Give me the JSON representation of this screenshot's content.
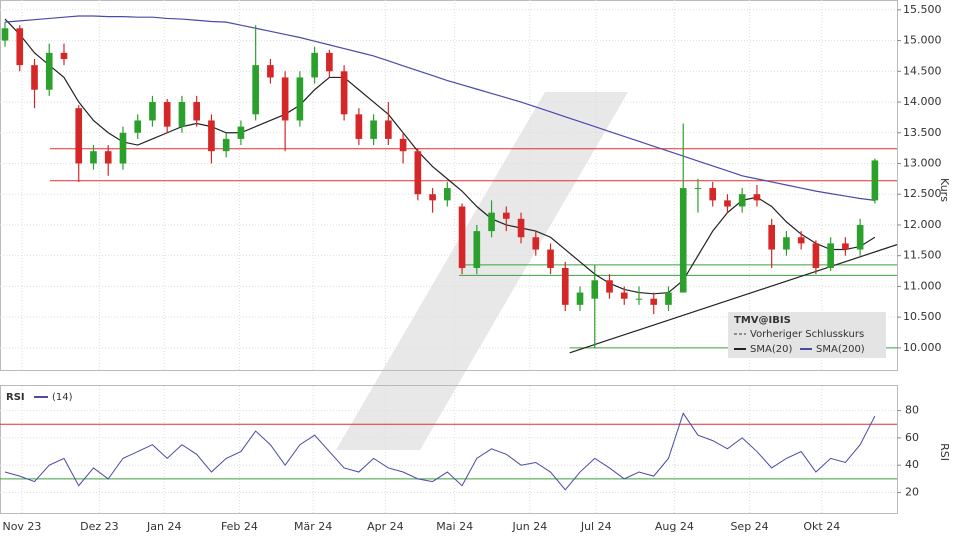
{
  "chart_data": {
    "type": "candlestick",
    "instrument": "TMV@IBIS",
    "legend": [
      "Vorheriger Schlusskurs",
      "SMA(20)",
      "SMA(200)"
    ],
    "ylabel": "Kurs",
    "up_color": "#2ca02c",
    "down_color": "#d62728",
    "xlim": [
      -0.34,
      60.5
    ],
    "xticks": [
      {
        "value": 1.15,
        "label": "Nov 23"
      },
      {
        "value": 6.4,
        "label": "Dez 23"
      },
      {
        "value": 10.8,
        "label": "Jan 24"
      },
      {
        "value": 15.9,
        "label": "Feb 24"
      },
      {
        "value": 20.9,
        "label": "Mär 24"
      },
      {
        "value": 25.8,
        "label": "Apr 24"
      },
      {
        "value": 30.5,
        "label": "Mai 24"
      },
      {
        "value": 35.6,
        "label": "Jun 24"
      },
      {
        "value": 40.1,
        "label": "Jul 24"
      },
      {
        "value": 45.4,
        "label": "Aug 24"
      },
      {
        "value": 50.5,
        "label": "Sep 24"
      },
      {
        "value": 55.4,
        "label": "Okt 24"
      }
    ],
    "ylim": [
      9.64,
      15.66
    ],
    "yticks": [
      {
        "value": 10,
        "label": "10.000"
      },
      {
        "value": 10.5,
        "label": "10.500"
      },
      {
        "value": 11,
        "label": "11.000"
      },
      {
        "value": 11.5,
        "label": "11.500"
      },
      {
        "value": 12,
        "label": "12.000"
      },
      {
        "value": 12.5,
        "label": "12.500"
      },
      {
        "value": 13,
        "label": "13.000"
      },
      {
        "value": 13.5,
        "label": "13.500"
      },
      {
        "value": 14,
        "label": "14.000"
      },
      {
        "value": 14.5,
        "label": "14.500"
      },
      {
        "value": 15,
        "label": "15.000"
      },
      {
        "value": 15.5,
        "label": "15.500"
      }
    ],
    "ohlc": [
      [
        15.0,
        15.3,
        14.9,
        15.2
      ],
      [
        15.2,
        15.25,
        14.5,
        14.6
      ],
      [
        14.6,
        14.7,
        13.9,
        14.2
      ],
      [
        14.2,
        14.95,
        14.1,
        14.8
      ],
      [
        14.8,
        14.95,
        14.6,
        14.7
      ],
      [
        13.9,
        13.95,
        12.7,
        13.0
      ],
      [
        13.0,
        13.3,
        12.9,
        13.2
      ],
      [
        13.2,
        13.3,
        12.8,
        13.0
      ],
      [
        13.0,
        13.6,
        12.9,
        13.5
      ],
      [
        13.5,
        13.8,
        13.4,
        13.7
      ],
      [
        13.7,
        14.1,
        13.6,
        14.0
      ],
      [
        14.0,
        14.05,
        13.5,
        13.6
      ],
      [
        13.6,
        14.1,
        13.5,
        14.0
      ],
      [
        14.0,
        14.1,
        13.6,
        13.7
      ],
      [
        13.7,
        13.8,
        13.0,
        13.2
      ],
      [
        13.2,
        13.5,
        13.1,
        13.4
      ],
      [
        13.4,
        13.7,
        13.3,
        13.6
      ],
      [
        13.8,
        15.25,
        13.7,
        14.6
      ],
      [
        14.6,
        14.7,
        14.3,
        14.4
      ],
      [
        14.4,
        14.5,
        13.2,
        13.7
      ],
      [
        13.7,
        14.5,
        13.6,
        14.4
      ],
      [
        14.4,
        14.9,
        14.3,
        14.8
      ],
      [
        14.8,
        14.85,
        14.4,
        14.5
      ],
      [
        14.5,
        14.6,
        13.7,
        13.8
      ],
      [
        13.8,
        13.9,
        13.3,
        13.4
      ],
      [
        13.4,
        13.8,
        13.3,
        13.7
      ],
      [
        13.7,
        14.0,
        13.3,
        13.4
      ],
      [
        13.4,
        13.5,
        13.0,
        13.2
      ],
      [
        13.2,
        13.25,
        12.4,
        12.5
      ],
      [
        12.5,
        12.6,
        12.2,
        12.4
      ],
      [
        12.4,
        12.7,
        12.3,
        12.6
      ],
      [
        12.3,
        12.35,
        11.2,
        11.3
      ],
      [
        11.3,
        12.0,
        11.2,
        11.9
      ],
      [
        11.9,
        12.4,
        11.8,
        12.2
      ],
      [
        12.2,
        12.3,
        11.9,
        12.1
      ],
      [
        12.1,
        12.2,
        11.7,
        11.8
      ],
      [
        11.8,
        11.9,
        11.5,
        11.6
      ],
      [
        11.6,
        11.7,
        11.2,
        11.3
      ],
      [
        11.3,
        11.4,
        10.6,
        10.7
      ],
      [
        10.7,
        11.0,
        10.6,
        10.9
      ],
      [
        10.8,
        11.35,
        10.0,
        11.1
      ],
      [
        11.1,
        11.2,
        10.8,
        10.9
      ],
      [
        10.9,
        11.0,
        10.7,
        10.8
      ],
      [
        10.8,
        11.0,
        10.7,
        10.8
      ],
      [
        10.8,
        10.9,
        10.55,
        10.7
      ],
      [
        10.7,
        11.0,
        10.6,
        10.9
      ],
      [
        10.9,
        13.65,
        10.9,
        12.6
      ],
      [
        12.6,
        12.75,
        12.2,
        12.6
      ],
      [
        12.6,
        12.7,
        12.3,
        12.4
      ],
      [
        12.4,
        12.5,
        12.2,
        12.3
      ],
      [
        12.3,
        12.6,
        12.2,
        12.5
      ],
      [
        12.5,
        12.65,
        12.3,
        12.4
      ],
      [
        12.0,
        12.1,
        11.3,
        11.6
      ],
      [
        11.6,
        11.9,
        11.5,
        11.8
      ],
      [
        11.8,
        11.9,
        11.6,
        11.7
      ],
      [
        11.7,
        11.75,
        11.2,
        11.3
      ],
      [
        11.3,
        11.8,
        11.25,
        11.7
      ],
      [
        11.7,
        11.8,
        11.5,
        11.6
      ],
      [
        11.6,
        12.1,
        11.5,
        12.0
      ],
      [
        12.4,
        13.08,
        12.35,
        13.05
      ]
    ],
    "series": [
      {
        "name": "SMA(20)",
        "color": "#222222",
        "values": [
          15.35,
          15.1,
          14.8,
          14.6,
          14.4,
          14.0,
          13.7,
          13.5,
          13.35,
          13.3,
          13.4,
          13.5,
          13.6,
          13.65,
          13.6,
          13.5,
          13.5,
          13.6,
          13.7,
          13.8,
          13.95,
          14.2,
          14.4,
          14.4,
          14.2,
          14.0,
          13.8,
          13.5,
          13.2,
          12.95,
          12.75,
          12.55,
          12.3,
          12.1,
          12.0,
          11.95,
          11.9,
          11.8,
          11.6,
          11.4,
          11.2,
          11.05,
          10.95,
          10.9,
          10.88,
          10.9,
          11.1,
          11.5,
          11.9,
          12.2,
          12.4,
          12.45,
          12.3,
          12.05,
          11.85,
          11.7,
          11.6,
          11.6,
          11.65,
          11.8
        ]
      },
      {
        "name": "SMA(200)",
        "color": "#4a4aa8",
        "values": [
          15.3,
          15.32,
          15.34,
          15.36,
          15.38,
          15.4,
          15.4,
          15.39,
          15.39,
          15.38,
          15.38,
          15.36,
          15.35,
          15.33,
          15.31,
          15.3,
          15.25,
          15.2,
          15.15,
          15.1,
          15.05,
          14.99,
          14.93,
          14.87,
          14.81,
          14.75,
          14.67,
          14.59,
          14.51,
          14.43,
          14.35,
          14.28,
          14.21,
          14.14,
          14.07,
          14.0,
          13.92,
          13.84,
          13.76,
          13.68,
          13.6,
          13.52,
          13.44,
          13.36,
          13.28,
          13.2,
          13.12,
          13.04,
          12.96,
          12.88,
          12.8,
          12.75,
          12.7,
          12.65,
          12.6,
          12.55,
          12.51,
          12.47,
          12.43,
          12.4
        ]
      }
    ],
    "hlines": [
      {
        "y": 13.24,
        "x": [
          3.05,
          60.5
        ],
        "color": "#e03030"
      },
      {
        "y": 12.72,
        "x": [
          3.05,
          60.5
        ],
        "color": "#e03030"
      },
      {
        "y": 11.35,
        "x": [
          30.9,
          60.5
        ],
        "color": "#3aa03a"
      },
      {
        "y": 11.18,
        "x": [
          30.8,
          60.5
        ],
        "color": "#3aa03a"
      },
      {
        "y": 10.0,
        "x": [
          38.3,
          60.5
        ],
        "color": "#3aa03a"
      }
    ],
    "trendline": {
      "x": [
        38.3,
        60.5
      ],
      "y": [
        9.92,
        11.68
      ],
      "color": "#222222"
    },
    "rsi": {
      "label": "RSI",
      "period": "(14)",
      "ylabel": "RSI",
      "color": "#4a4aa8",
      "ylim": [
        5,
        98
      ],
      "yticks": [
        20,
        40,
        60,
        80
      ],
      "levels": [
        {
          "y": 70,
          "color": "#e03030"
        },
        {
          "y": 30,
          "color": "#3aa03a"
        }
      ],
      "values": [
        35,
        32,
        28,
        40,
        45,
        25,
        38,
        30,
        45,
        50,
        55,
        45,
        55,
        48,
        35,
        45,
        50,
        65,
        55,
        40,
        55,
        62,
        50,
        38,
        35,
        45,
        38,
        35,
        30,
        28,
        35,
        25,
        45,
        52,
        48,
        40,
        42,
        35,
        22,
        35,
        45,
        38,
        30,
        35,
        32,
        45,
        78,
        62,
        58,
        52,
        60,
        50,
        38,
        45,
        50,
        35,
        45,
        42,
        55,
        76
      ]
    }
  }
}
